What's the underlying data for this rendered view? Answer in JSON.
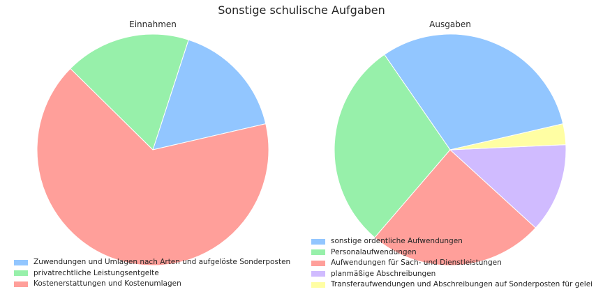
{
  "suptitle": "Sonstige schulische Aufgaben",
  "chart_data": [
    {
      "type": "pie",
      "title": "Einnahmen",
      "start_angle_deg": 13,
      "direction": "counterclockwise",
      "slices": [
        {
          "label": "Zuwendungen und Umlagen nach Arten und aufgelöste Sonderposten",
          "value": 16.4,
          "color": "#92c6ff"
        },
        {
          "label": "privatrechtliche Leistungsentgelte",
          "value": 17.6,
          "color": "#97f0aa"
        },
        {
          "label": "Kostenerstattungen und Kostenumlagen",
          "value": 66.0,
          "color": "#ff9f9a"
        }
      ],
      "legend_position": "lower-left"
    },
    {
      "type": "pie",
      "title": "Ausgaben",
      "start_angle_deg": 13,
      "direction": "counterclockwise",
      "slices": [
        {
          "label": "sonstige ordentliche Aufwendungen",
          "value": 31.0,
          "color": "#92c6ff"
        },
        {
          "label": "Personalaufwendungen",
          "value": 29.1,
          "color": "#97f0aa"
        },
        {
          "label": "Aufwendungen für Sach- und Dienstleistungen",
          "value": 24.5,
          "color": "#ff9f9a"
        },
        {
          "label": "planmäßige Abschreibungen",
          "value": 12.5,
          "color": "#d0bbff"
        },
        {
          "label": "Transferaufwendungen und Abschreibungen auf Sonderposten für geleistete Investitionszuweisungen",
          "value": 2.9,
          "color": "#fffea3"
        }
      ],
      "legend_position": "lower-left"
    }
  ]
}
